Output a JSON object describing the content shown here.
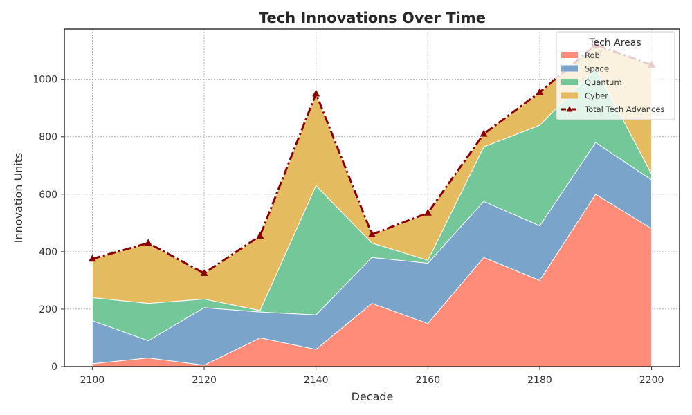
{
  "chart_data": {
    "type": "area",
    "title": "Tech Innovations Over Time",
    "xlabel": "Decade",
    "ylabel": "Innovation Units",
    "x": [
      2100,
      2110,
      2120,
      2130,
      2140,
      2150,
      2160,
      2170,
      2180,
      2190,
      2200
    ],
    "xticks": [
      2100,
      2120,
      2140,
      2160,
      2180,
      2200
    ],
    "yticks": [
      0,
      200,
      400,
      600,
      800,
      1000
    ],
    "xlim": [
      2095,
      2205
    ],
    "ylim": [
      0,
      1175
    ],
    "grid": true,
    "stacked": true,
    "series": [
      {
        "name": "Rob",
        "color": "#ff8c78",
        "values": [
          10,
          30,
          5,
          100,
          60,
          220,
          150,
          380,
          300,
          600,
          480
        ]
      },
      {
        "name": "Space",
        "color": "#7aa4ca",
        "values": [
          150,
          60,
          200,
          90,
          120,
          160,
          210,
          195,
          190,
          180,
          170
        ]
      },
      {
        "name": "Quantum",
        "color": "#73c799",
        "values": [
          80,
          130,
          30,
          5,
          450,
          50,
          10,
          190,
          350,
          260,
          20
        ]
      },
      {
        "name": "Cyber",
        "color": "#e5bb5f",
        "values": [
          135,
          210,
          90,
          260,
          320,
          30,
          165,
          45,
          115,
          80,
          380
        ]
      }
    ],
    "total": {
      "name": "Total Tech Advances",
      "color": "#8b0000",
      "values": [
        375,
        430,
        325,
        455,
        950,
        460,
        535,
        810,
        955,
        1120,
        1050
      ]
    },
    "legend": {
      "title": "Tech Areas",
      "position": "top-right"
    }
  }
}
